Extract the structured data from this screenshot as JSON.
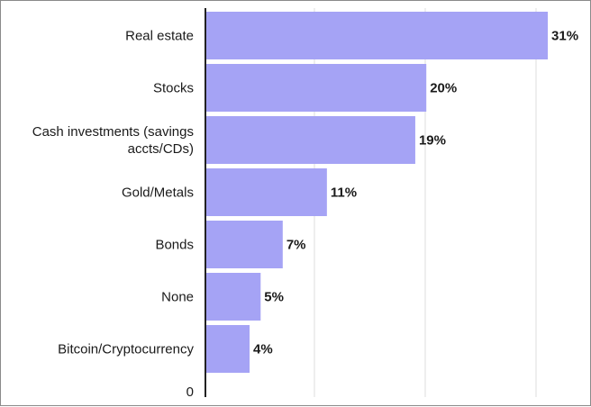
{
  "chart_data": {
    "type": "bar",
    "orientation": "horizontal",
    "categories": [
      [
        "Real estate"
      ],
      [
        "Stocks"
      ],
      [
        "Cash investments (savings",
        "accts/CDs)"
      ],
      [
        "Gold/Metals"
      ],
      [
        "Bonds"
      ],
      [
        "None"
      ],
      [
        "Bitcoin/Cryptocurrency"
      ]
    ],
    "values": [
      31,
      20,
      19,
      11,
      7,
      5,
      4
    ],
    "value_labels": [
      "31%",
      "20%",
      "19%",
      "11%",
      "7%",
      "5%",
      "4%"
    ],
    "zero_label": "0",
    "xlim": [
      0,
      32
    ],
    "grid": true,
    "bar_color": "#a5a3f5",
    "grid_color": "#dcdcdc",
    "axis_color": "#222222"
  }
}
